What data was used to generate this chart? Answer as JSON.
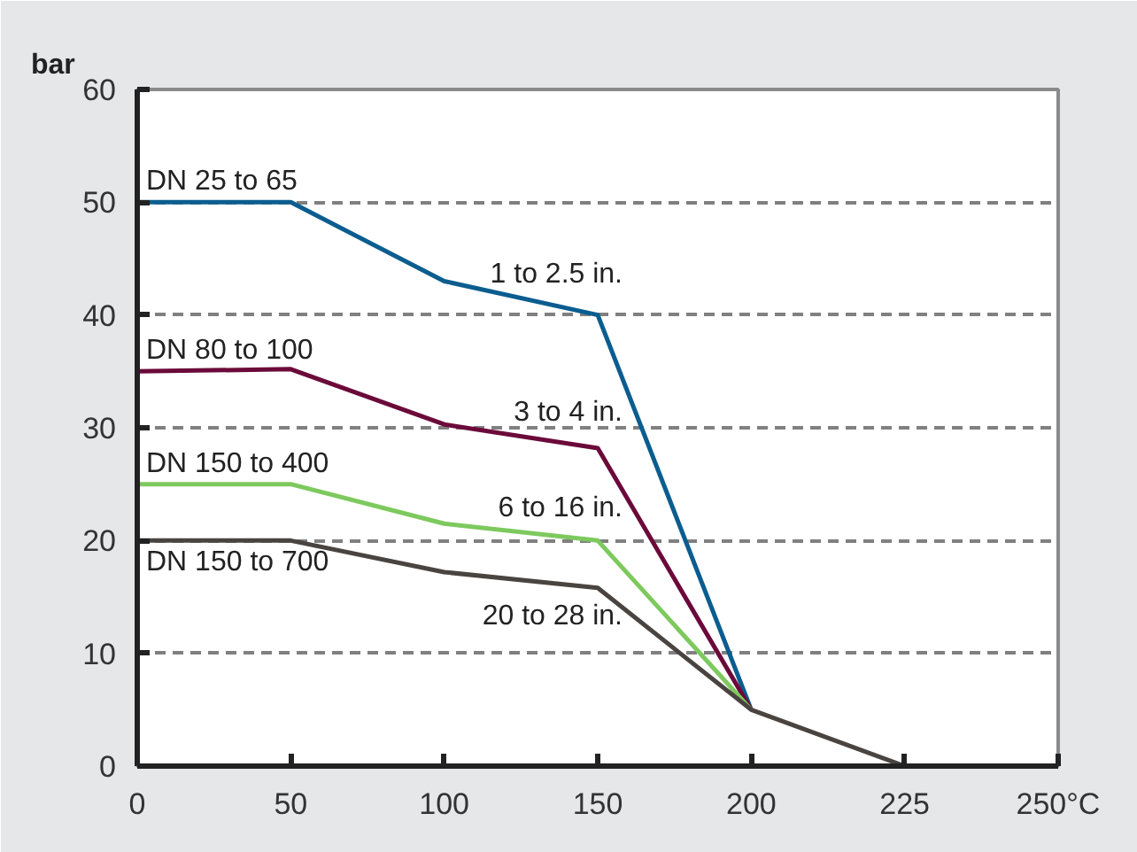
{
  "chart_data": {
    "type": "line",
    "ylabel": "bar",
    "categories": [
      "0",
      "50",
      "100",
      "150",
      "200",
      "225",
      "250°C"
    ],
    "series": [
      {
        "name": "DN 25 to 65",
        "color": "#0b5d8f",
        "values": [
          50,
          50,
          43,
          40,
          5,
          null,
          null
        ]
      },
      {
        "name": "DN 80 to 100",
        "color": "#6b0a3a",
        "values": [
          35,
          35.2,
          30.3,
          28.2,
          5,
          null,
          null
        ]
      },
      {
        "name": "DN 150 to 400",
        "color": "#7dc95e",
        "values": [
          25,
          25,
          21.5,
          20,
          5,
          null,
          null
        ]
      },
      {
        "name": "DN 150 to 700",
        "color": "#4a4440",
        "values": [
          20,
          20,
          17.2,
          15.8,
          5,
          0,
          null
        ]
      }
    ],
    "annotations": [
      "1 to 2.5 in.",
      "3 to 4 in.",
      "6 to 16 in.",
      "20 to 28 in."
    ],
    "ylim": [
      0,
      60
    ],
    "yticks": [
      0,
      10,
      20,
      30,
      40,
      50,
      60
    ],
    "grid": "y",
    "marker": "none",
    "line_style": "solid"
  }
}
